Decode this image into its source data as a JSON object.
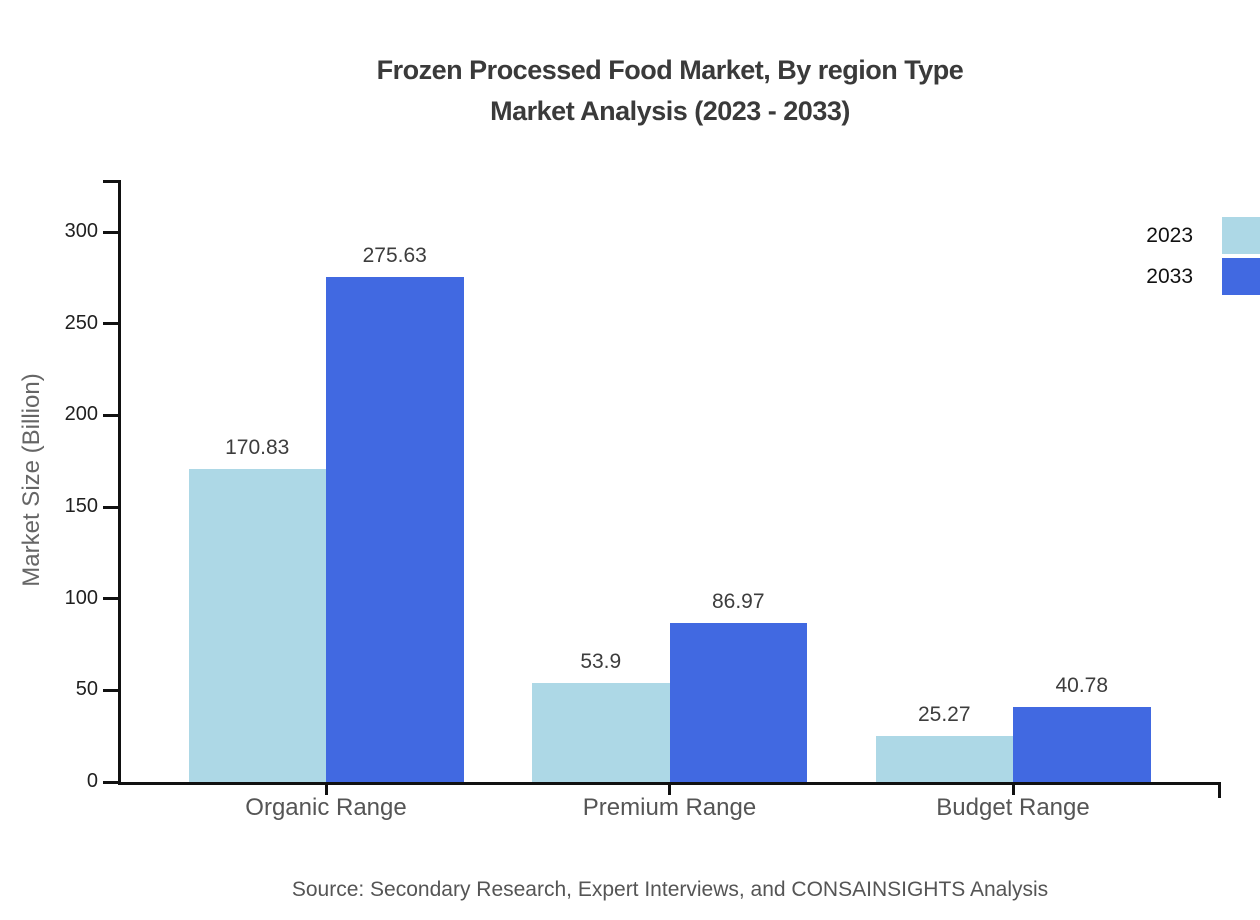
{
  "title": {
    "line1": "Frozen Processed Food Market, By region Type",
    "line2": "Market Analysis (2023 - 2033)"
  },
  "y_axis_label": "Market Size (Billion)",
  "source": "Source: Secondary Research, Expert Interviews, and CONSAINSIGHTS Analysis",
  "colors": {
    "series_2023": "#ADD8E6",
    "series_2033": "#4169E1",
    "axis": "#111111",
    "title_text": "#3a3a3a",
    "muted_text": "#555555"
  },
  "legend": [
    {
      "label": "2023",
      "color": "#ADD8E6"
    },
    {
      "label": "2033",
      "color": "#4169E1"
    }
  ],
  "chart_data": {
    "type": "bar",
    "title": "Frozen Processed Food Market, By region Type Market Analysis (2023 - 2033)",
    "categories": [
      "Organic Range",
      "Premium Range",
      "Budget Range"
    ],
    "series": [
      {
        "name": "2023",
        "color": "#ADD8E6",
        "values": [
          170.83,
          53.9,
          25.27
        ]
      },
      {
        "name": "2033",
        "color": "#4169E1",
        "values": [
          275.63,
          86.97,
          40.78
        ]
      }
    ],
    "data_labels": [
      [
        "170.83",
        "53.9",
        "25.27"
      ],
      [
        "275.63",
        "86.97",
        "40.78"
      ]
    ],
    "xlabel": "",
    "ylabel": "Market Size (Billion)",
    "ylim": [
      0,
      328
    ],
    "yticks": [
      0,
      50,
      100,
      150,
      200,
      250,
      300
    ],
    "grid": false,
    "legend_position": "top-right",
    "source": "Source: Secondary Research, Expert Interviews, and CONSAINSIGHTS Analysis"
  }
}
